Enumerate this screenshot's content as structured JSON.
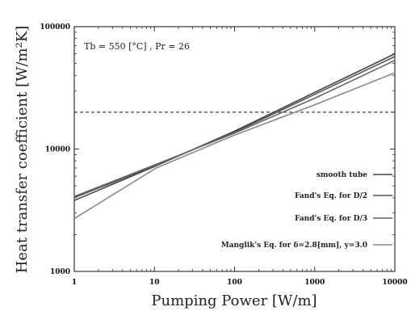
{
  "chart_data": {
    "type": "line",
    "x_scale": "log",
    "y_scale": "log",
    "xlim": [
      1,
      10000
    ],
    "ylim": [
      1000,
      100000
    ],
    "x_ticks": [
      "1",
      "10",
      "100",
      "1000",
      "10000"
    ],
    "y_ticks": [
      "1000",
      "10000",
      "100000"
    ],
    "xlabel": "Pumping Power [W/m]",
    "ylabel": "Heat transfer coefficient [W/m²K]",
    "annotation": "Tb = 550 [°C] , Pr = 26",
    "legend_position": "bottom-right",
    "grid": false,
    "reference_line": {
      "y": 20000,
      "style": "dashed"
    },
    "series": [
      {
        "name": "smooth tube",
        "color": "#444444",
        "x": [
          1,
          10,
          100,
          1000,
          10000
        ],
        "y": [
          3800,
          7200,
          14000,
          29000,
          60000
        ]
      },
      {
        "name": "Fand's Eq. for D/2",
        "color": "#555555",
        "x": [
          1,
          10,
          100,
          1000,
          10000
        ],
        "y": [
          4000,
          7300,
          13700,
          28000,
          57000
        ]
      },
      {
        "name": "Fand's Eq. for D/3",
        "color": "#666666",
        "x": [
          1,
          10,
          100,
          1000,
          10000
        ],
        "y": [
          4100,
          7400,
          13500,
          26000,
          53000
        ]
      },
      {
        "name": "Manglik's Eq. for δ=2.8[mm], y=3.0",
        "color": "#8a8a8a",
        "x": [
          1,
          10.5,
          100,
          1000,
          10000
        ],
        "y": [
          2700,
          7000,
          13000,
          23000,
          42000
        ]
      }
    ]
  }
}
